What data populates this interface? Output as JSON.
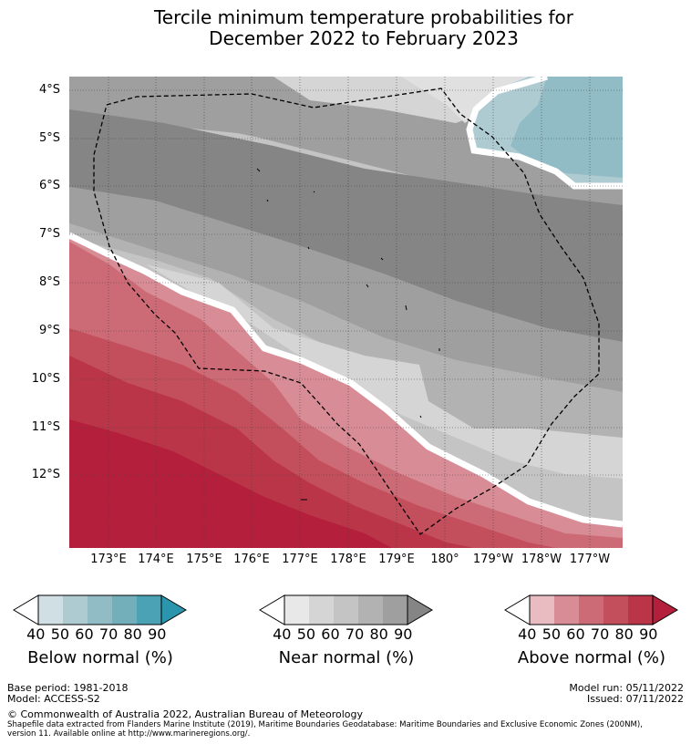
{
  "title": [
    "Tercile minimum temperature probabilities for",
    "December 2022 to February 2023"
  ],
  "map": {
    "lat_labels": [
      "4°S",
      "5°S",
      "6°S",
      "7°S",
      "8°S",
      "9°S",
      "10°S",
      "11°S",
      "12°S"
    ],
    "lon_labels": [
      "173°E",
      "174°E",
      "175°E",
      "176°E",
      "177°E",
      "178°E",
      "179°E",
      "180°",
      "179°W",
      "178°W",
      "177°W"
    ]
  },
  "colorbars": [
    {
      "name": "below",
      "label": "Below normal (%)",
      "ticks": [
        "40",
        "50",
        "60",
        "70",
        "80",
        "90"
      ],
      "colors": [
        "#cfdfe4",
        "#afcbd2",
        "#92bcc5",
        "#73afbb",
        "#4aa2b4",
        "#2a95ad"
      ]
    },
    {
      "name": "near",
      "label": "Near normal (%)",
      "ticks": [
        "40",
        "50",
        "60",
        "70",
        "80",
        "90"
      ],
      "colors": [
        "#e8e8e8",
        "#d5d5d5",
        "#c4c4c4",
        "#b2b2b2",
        "#9f9f9f",
        "#858585"
      ]
    },
    {
      "name": "above",
      "label": "Above normal (%)",
      "ticks": [
        "40",
        "50",
        "60",
        "70",
        "80",
        "90"
      ],
      "colors": [
        "#e8bcc1",
        "#d88c96",
        "#cc6b76",
        "#c34f5c",
        "#ba3548",
        "#b41f3c"
      ]
    }
  ],
  "footer": {
    "base_period": "Base period: 1981-2018",
    "model": "Model: ACCESS-S2",
    "model_run": "Model run: 05/11/2022",
    "issued": "Issued: 07/11/2022",
    "copyright": "© Commonwealth of Australia 2022, Australian Bureau of Meteorology",
    "shapefile_1": "Shapefile data extracted from Flanders Marine Institute (2019), Maritime Boundaries Geodatabase: Maritime Boundaries and Exclusive Economic Zones (200NM),",
    "shapefile_2": "version 11. Available online at http://www.marineregions.org/."
  }
}
